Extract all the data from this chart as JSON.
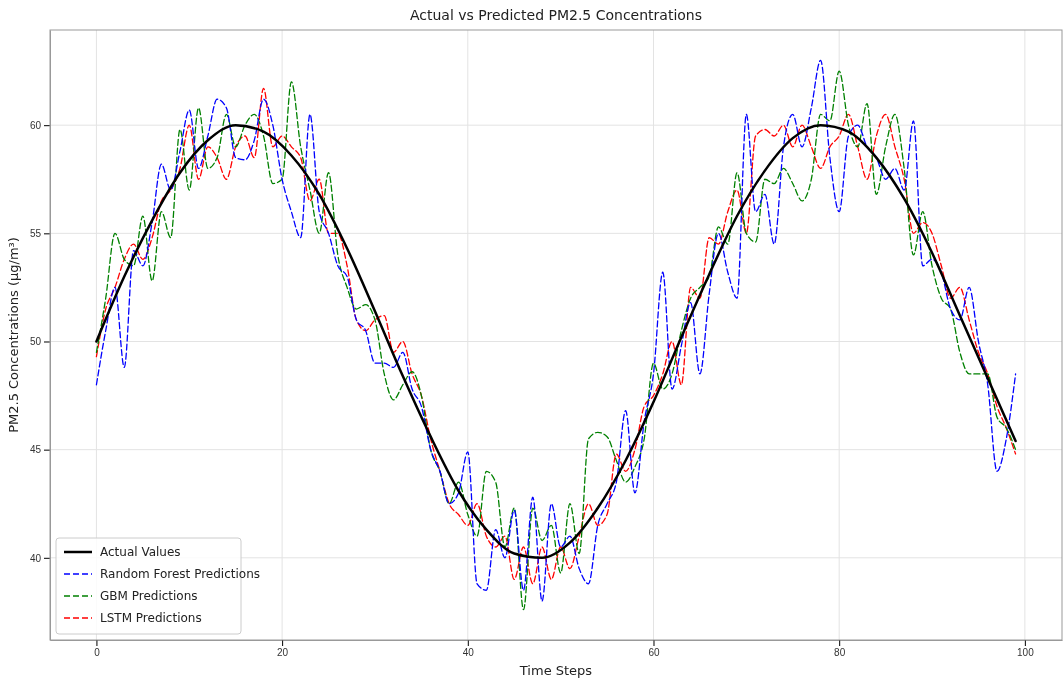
{
  "chart_data": {
    "type": "line",
    "title": "Actual vs Predicted PM2.5 Concentrations",
    "xlabel": "Time Steps",
    "ylabel": "PM2.5 Concentrations (µg/m³)",
    "x": [
      0,
      1,
      2,
      3,
      4,
      5,
      6,
      7,
      8,
      9,
      10,
      11,
      12,
      13,
      14,
      15,
      16,
      17,
      18,
      19,
      20,
      21,
      22,
      23,
      24,
      25,
      26,
      27,
      28,
      29,
      30,
      31,
      32,
      33,
      34,
      35,
      36,
      37,
      38,
      39,
      40,
      41,
      42,
      43,
      44,
      45,
      46,
      47,
      48,
      49,
      50,
      51,
      52,
      53,
      54,
      55,
      56,
      57,
      58,
      59,
      60,
      61,
      62,
      63,
      64,
      65,
      66,
      67,
      68,
      69,
      70,
      71,
      72,
      73,
      74,
      75,
      76,
      77,
      78,
      79,
      80,
      81,
      82,
      83,
      84,
      85,
      86,
      87,
      88,
      89,
      90,
      91,
      92,
      93,
      94,
      95,
      96,
      97,
      98,
      99
    ],
    "series": [
      {
        "name": "Actual Values",
        "color": "#000000",
        "line_style": "solid",
        "x": [
          0,
          3,
          6,
          9,
          12,
          15,
          18,
          21,
          24,
          27,
          30,
          33,
          36,
          39,
          42,
          45,
          48,
          51,
          54,
          57,
          60,
          63,
          66,
          69,
          72,
          75,
          78,
          81,
          84,
          87,
          90,
          93,
          96,
          99
        ],
        "values": [
          50.0,
          53.0,
          55.6,
          57.8,
          59.3,
          60.0,
          59.7,
          58.6,
          56.8,
          54.3,
          51.4,
          48.4,
          45.6,
          43.1,
          41.3,
          40.2,
          40.0,
          40.7,
          42.3,
          44.5,
          47.2,
          50.2,
          53.1,
          55.8,
          57.9,
          59.4,
          60.0,
          59.7,
          58.5,
          56.6,
          54.1,
          51.2,
          48.3,
          45.4
        ]
      },
      {
        "name": "Random Forest Predictions",
        "color": "#0000ff",
        "line_style": "dashed",
        "values": [
          48.0,
          50.5,
          52.5,
          48.8,
          54.2,
          53.5,
          55.5,
          58.2,
          57.0,
          58.8,
          60.7,
          58.0,
          59.5,
          61.2,
          60.8,
          58.5,
          58.4,
          59.3,
          61.2,
          60.0,
          57.5,
          56.0,
          54.8,
          60.5,
          56.0,
          55.0,
          53.5,
          53.0,
          51.0,
          50.5,
          49.0,
          49.0,
          48.8,
          49.5,
          47.8,
          47.0,
          45.0,
          44.0,
          42.5,
          43.0,
          44.9,
          38.8,
          38.5,
          41.3,
          40.0,
          42.2,
          38.5,
          42.8,
          38.0,
          42.5,
          40.5,
          41.0,
          39.5,
          38.8,
          41.5,
          42.5,
          43.5,
          46.8,
          43.0,
          46.3,
          48.5,
          53.2,
          47.8,
          49.8,
          51.8,
          48.5,
          52.2,
          55.0,
          53.2,
          52.0,
          60.5,
          56.0,
          56.8,
          54.5,
          59.0,
          60.5,
          59.0,
          60.8,
          63.0,
          58.5,
          56.0,
          59.5,
          60.0,
          59.0,
          58.5,
          57.5,
          58.0,
          57.0,
          60.2,
          53.5,
          53.8,
          53.2,
          51.5,
          51.0,
          52.5,
          50.0,
          48.0,
          44.0,
          45.5,
          48.5
        ]
      },
      {
        "name": "GBM Predictions",
        "color": "#008000",
        "line_style": "dashed",
        "values": [
          49.5,
          52.0,
          55.0,
          53.8,
          53.5,
          55.8,
          52.8,
          56.0,
          54.8,
          59.8,
          57.0,
          60.8,
          58.0,
          58.5,
          60.5,
          59.0,
          60.0,
          60.5,
          59.5,
          57.3,
          57.5,
          62.0,
          59.0,
          57.0,
          55.0,
          57.8,
          54.0,
          52.5,
          51.5,
          51.7,
          51.0,
          48.5,
          47.3,
          48.0,
          48.6,
          47.5,
          45.0,
          44.0,
          42.5,
          43.5,
          42.0,
          41.0,
          44.0,
          43.5,
          40.5,
          42.3,
          37.6,
          42.3,
          40.8,
          41.5,
          39.3,
          42.5,
          40.2,
          45.5,
          45.8,
          45.6,
          44.5,
          43.5,
          44.2,
          45.5,
          49.0,
          47.8,
          48.5,
          50.5,
          52.0,
          52.5,
          53.0,
          55.3,
          54.5,
          57.8,
          55.0,
          54.6,
          57.5,
          57.3,
          58.0,
          57.3,
          56.5,
          57.5,
          60.5,
          60.2,
          62.5,
          60.0,
          59.0,
          61.0,
          56.8,
          59.0,
          60.5,
          58.0,
          54.0,
          56.0,
          53.5,
          52.0,
          51.5,
          49.5,
          48.5,
          48.5,
          48.5,
          46.5,
          46.0,
          45.0
        ]
      },
      {
        "name": "LSTM Predictions",
        "color": "#ff0000",
        "line_style": "dashed",
        "values": [
          49.3,
          51.5,
          52.5,
          53.8,
          54.5,
          53.8,
          54.8,
          56.5,
          57.0,
          58.0,
          60.0,
          57.5,
          59.0,
          58.5,
          57.5,
          59.0,
          59.5,
          58.5,
          61.7,
          59.0,
          59.5,
          59.0,
          58.5,
          56.5,
          57.5,
          55.0,
          55.0,
          53.5,
          51.0,
          50.5,
          51.0,
          51.2,
          49.5,
          50.0,
          48.5,
          47.5,
          45.5,
          44.0,
          42.5,
          42.0,
          41.5,
          42.5,
          41.0,
          40.5,
          41.0,
          39.0,
          40.5,
          38.8,
          40.5,
          39.0,
          40.5,
          39.5,
          41.0,
          42.5,
          41.5,
          42.0,
          44.8,
          44.0,
          45.0,
          47.0,
          47.5,
          48.5,
          50.0,
          48.0,
          52.5,
          52.0,
          54.8,
          54.5,
          56.0,
          57.0,
          55.0,
          59.5,
          59.8,
          59.5,
          60.0,
          59.0,
          60.0,
          59.0,
          58.0,
          59.0,
          59.5,
          60.5,
          59.0,
          57.5,
          59.5,
          60.5,
          59.0,
          57.5,
          55.0,
          55.5,
          55.0,
          53.5,
          52.0,
          52.5,
          51.0,
          49.5,
          48.5,
          47.0,
          46.0,
          44.8
        ]
      }
    ],
    "xlim": [
      -5,
      104
    ],
    "xticks": [
      0,
      20,
      40,
      60,
      80,
      100
    ],
    "ylim": [
      36.2,
      64.4
    ],
    "yticks": [
      40,
      45,
      50,
      55,
      60
    ],
    "grid": true,
    "legend": "bottom left"
  }
}
